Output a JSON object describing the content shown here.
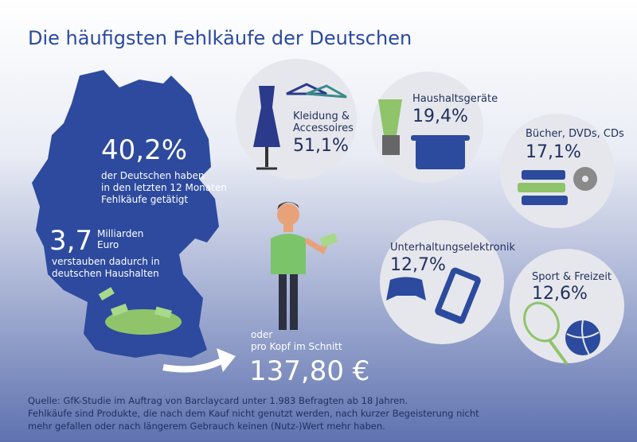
{
  "title": "Die häufigsten Fehlkäufe der Deutschen",
  "stats": {
    "share": "40,2%",
    "share_text": [
      "der Deutschen haben",
      "in den letzten 12 Monaten",
      "Fehlkäufe getätigt"
    ],
    "amount": "3,7",
    "amount_unit": [
      "Milliarden",
      "Euro"
    ],
    "amount_text": [
      "verstauben dadurch in",
      "deutschen Haushalten"
    ],
    "per_head_text": [
      "oder",
      "pro Kopf im Schnitt"
    ],
    "per_head": "137,80 €"
  },
  "categories": [
    {
      "label": [
        "Kleidung &",
        "Accessoires"
      ],
      "value": "51,1%"
    },
    {
      "label": [
        "Haushaltsgeräte"
      ],
      "value": "19,4%"
    },
    {
      "label": [
        "Bücher, DVDs, CDs"
      ],
      "value": "17,1%"
    },
    {
      "label": [
        "Unterhaltungselektronik"
      ],
      "value": "12,7%"
    },
    {
      "label": [
        "Sport & Freizeit"
      ],
      "value": "12,6%"
    }
  ],
  "footer": [
    "Quelle: GfK-Studie im Auftrag von Barclaycard unter 1.983 Befragten ab 18 Jahren.",
    "Fehlkäufe sind Produkte, die nach dem Kauf nicht genutzt werden, nach kurzer Begeisterung nicht",
    "mehr gefallen oder nach längerem Gebrauch keinen (Nutz-)Wert mehr haben."
  ]
}
